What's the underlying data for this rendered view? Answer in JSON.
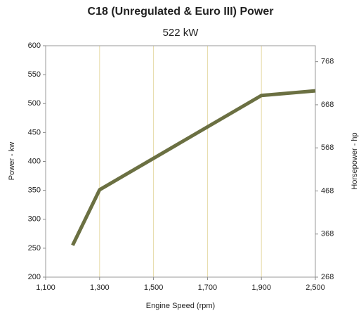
{
  "chart_data": {
    "type": "line",
    "title": "C18 (Unregulated & Euro III)  Power",
    "subtitle": "522 kW",
    "x_label": "Engine Speed (rpm)",
    "y_label": "Power - kw",
    "y2_label": "Horsepower - hp",
    "x": [
      1200,
      1300,
      1900,
      2500
    ],
    "series": [
      {
        "name": "Power",
        "color": "#6b7042",
        "values": [
          255,
          351,
          514,
          522
        ]
      }
    ],
    "xticks": [
      {
        "value": 1100,
        "label": "1,100"
      },
      {
        "value": 1300,
        "label": "1,300"
      },
      {
        "value": 1500,
        "label": "1,500"
      },
      {
        "value": 1700,
        "label": "1,700"
      },
      {
        "value": 1900,
        "label": "1,900"
      },
      {
        "value": 2500,
        "label": "2,500"
      }
    ],
    "ylim": [
      200,
      600
    ],
    "yticks": [
      200,
      250,
      300,
      350,
      400,
      450,
      500,
      550,
      600
    ],
    "y2lim": [
      268,
      805
    ],
    "y2ticks": [
      268,
      368,
      468,
      568,
      668,
      768
    ],
    "grid": true
  }
}
